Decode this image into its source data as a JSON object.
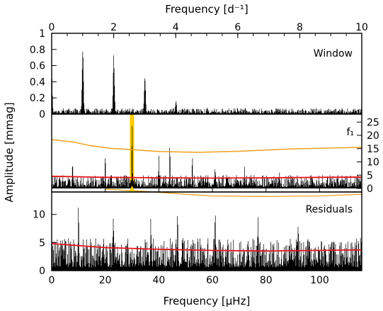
{
  "chart_data": {
    "type": "line",
    "x_top": {
      "label": "Frequency [d⁻¹]",
      "lim": [
        0,
        10
      ],
      "ticks": [
        "0",
        "2",
        "4",
        "6",
        "8",
        "10"
      ],
      "tick_values": [
        0,
        2,
        4,
        6,
        8,
        10
      ]
    },
    "x_bottom": {
      "label": "Frequency [μHz]",
      "lim": [
        0,
        115.74
      ],
      "ticks": [
        "0",
        "20",
        "40",
        "60",
        "80",
        "100"
      ],
      "tick_values": [
        0,
        20,
        40,
        60,
        80,
        100
      ]
    },
    "ylabel": "Amplitude [mmag]",
    "colors": {
      "spectrum": "#000000",
      "threshold_orange": "#f0a020",
      "noise_red": "#e8141c",
      "highlight": "#ffcc00"
    },
    "panels": [
      {
        "name": "Window",
        "ylim": [
          0,
          1
        ],
        "yticks": [
          "0",
          "0.2",
          "0.4",
          "0.6",
          "0.8",
          "1"
        ],
        "ytick_values": [
          0,
          0.2,
          0.4,
          0.6,
          0.8,
          1
        ],
        "peaks": [
          {
            "x": 0.0,
            "y": 0.55
          },
          {
            "x": 11.6,
            "y": 0.83
          },
          {
            "x": 23.2,
            "y": 0.78
          },
          {
            "x": 34.8,
            "y": 0.51
          },
          {
            "x": 46.4,
            "y": 0.17
          },
          {
            "x": 58.0,
            "y": 0.09
          },
          {
            "x": 69.5,
            "y": 0.05
          }
        ],
        "noise_level": 0.05
      },
      {
        "name": "f₁",
        "y_right_lim": [
          0,
          28
        ],
        "y_right_ticks": [
          "0",
          "5",
          "10",
          "15",
          "20",
          "25"
        ],
        "y_right_tick_values": [
          0,
          5,
          10,
          15,
          20,
          25
        ],
        "highlight_x": 30.0,
        "peaks": [
          {
            "x": 7.8,
            "y": 12
          },
          {
            "x": 20.0,
            "y": 14
          },
          {
            "x": 30.0,
            "y": 26.5
          },
          {
            "x": 40.0,
            "y": 14
          },
          {
            "x": 44.1,
            "y": 18
          },
          {
            "x": 52.5,
            "y": 13.5
          },
          {
            "x": 61.0,
            "y": 9
          },
          {
            "x": 72.0,
            "y": 8.5
          },
          {
            "x": 85.0,
            "y": 7.5
          }
        ],
        "noise_level": 3.5,
        "orange_curve": [
          [
            0,
            18.4
          ],
          [
            8,
            17.5
          ],
          [
            14,
            16.2
          ],
          [
            22,
            15.1
          ],
          [
            30,
            14.6
          ],
          [
            40,
            13.9
          ],
          [
            55,
            13.6
          ],
          [
            70,
            14.0
          ],
          [
            90,
            14.9
          ],
          [
            115.7,
            15.5
          ]
        ],
        "red_curve": [
          [
            0,
            4.6
          ],
          [
            20,
            4.2
          ],
          [
            40,
            4.0
          ],
          [
            60,
            3.9
          ],
          [
            80,
            4.0
          ],
          [
            115.7,
            4.3
          ]
        ]
      },
      {
        "name": "Residuals",
        "ylim": [
          0,
          14
        ],
        "yticks": [
          "0",
          "5",
          "10"
        ],
        "ytick_values": [
          0,
          5,
          10
        ],
        "peaks": [
          {
            "x": 10.0,
            "y": 12.5
          },
          {
            "x": 23.0,
            "y": 11.5
          },
          {
            "x": 37.0,
            "y": 11
          },
          {
            "x": 47.0,
            "y": 11
          },
          {
            "x": 61.0,
            "y": 11.5
          },
          {
            "x": 77.0,
            "y": 10.5
          },
          {
            "x": 92.0,
            "y": 10
          }
        ],
        "noise_level": 4.0,
        "orange_curve": [
          [
            20,
            14.5
          ],
          [
            35,
            14.1
          ],
          [
            50,
            13.6
          ],
          [
            60,
            13.3
          ],
          [
            80,
            13.2
          ],
          [
            100,
            13.3
          ],
          [
            115.7,
            13.6
          ]
        ],
        "red_curve": [
          [
            0,
            4.8
          ],
          [
            20,
            4.1
          ],
          [
            40,
            3.8
          ],
          [
            60,
            3.6
          ],
          [
            80,
            3.5
          ],
          [
            115.7,
            3.7
          ]
        ]
      }
    ]
  }
}
